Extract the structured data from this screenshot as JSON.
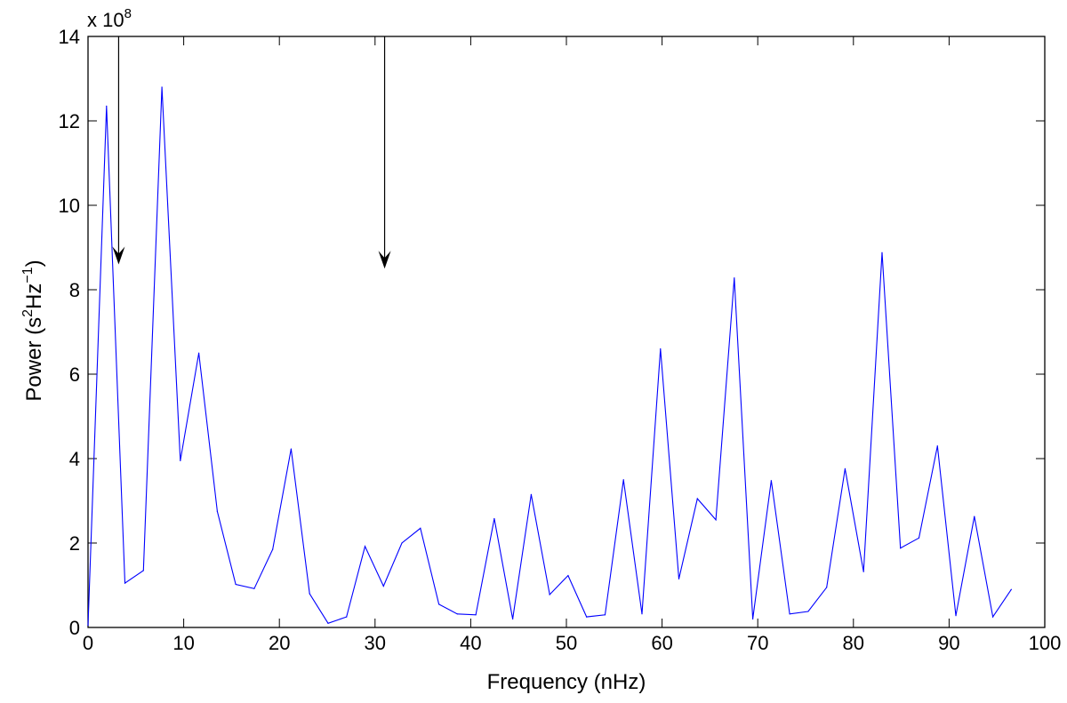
{
  "chart_data": {
    "type": "line",
    "title": "",
    "xlabel": "Frequency (nHz)",
    "ylabel": {
      "prefix": "Power (s",
      "sup1": "2",
      "mid": "Hz",
      "sup2": "−1",
      "suffix": ")"
    },
    "y_multiplier": {
      "base": "x 10",
      "exponent": "8"
    },
    "xlim": [
      0,
      100
    ],
    "ylim": [
      0,
      14
    ],
    "x_ticks": [
      0,
      10,
      20,
      30,
      40,
      50,
      60,
      70,
      80,
      90,
      100
    ],
    "y_ticks": [
      0,
      2,
      4,
      6,
      8,
      10,
      12,
      14
    ],
    "grid": false,
    "line_color": "#0000ff",
    "series": [
      {
        "x": [
          0,
          1.93,
          3.86,
          5.79,
          7.72,
          9.65,
          11.58,
          13.51,
          15.44,
          17.37,
          19.3,
          21.23,
          23.16,
          25.09,
          27.02,
          28.95,
          30.88,
          32.81,
          34.74,
          36.67,
          38.6,
          40.53,
          42.46,
          44.39,
          46.32,
          48.25,
          50.18,
          52.11,
          54.04,
          55.97,
          57.9,
          59.83,
          61.76,
          63.69,
          65.62,
          67.55,
          69.48,
          71.41,
          73.34,
          75.27,
          77.2,
          79.13,
          81.06,
          82.99,
          84.92,
          86.85,
          88.78,
          90.71,
          92.64,
          94.57,
          96.5
        ],
        "values": [
          0.05,
          12.35,
          1.05,
          1.35,
          12.8,
          3.95,
          6.5,
          2.75,
          1.02,
          0.92,
          1.85,
          4.23,
          0.8,
          0.1,
          0.25,
          1.92,
          0.98,
          2.0,
          2.35,
          0.55,
          0.32,
          0.3,
          2.58,
          0.2,
          3.15,
          0.78,
          1.23,
          0.25,
          0.3,
          3.5,
          0.32,
          6.6,
          1.15,
          3.05,
          2.55,
          8.28,
          0.2,
          3.48,
          0.32,
          0.38,
          0.95,
          3.76,
          1.32,
          8.88,
          1.88,
          2.12,
          4.3,
          0.28,
          2.63,
          0.25,
          0.9
        ]
      }
    ],
    "annotations": [
      {
        "type": "arrow",
        "x": 3.2,
        "y_start": 14,
        "y_end": 8.6
      },
      {
        "type": "arrow",
        "x": 31,
        "y_start": 14,
        "y_end": 8.5
      }
    ]
  }
}
